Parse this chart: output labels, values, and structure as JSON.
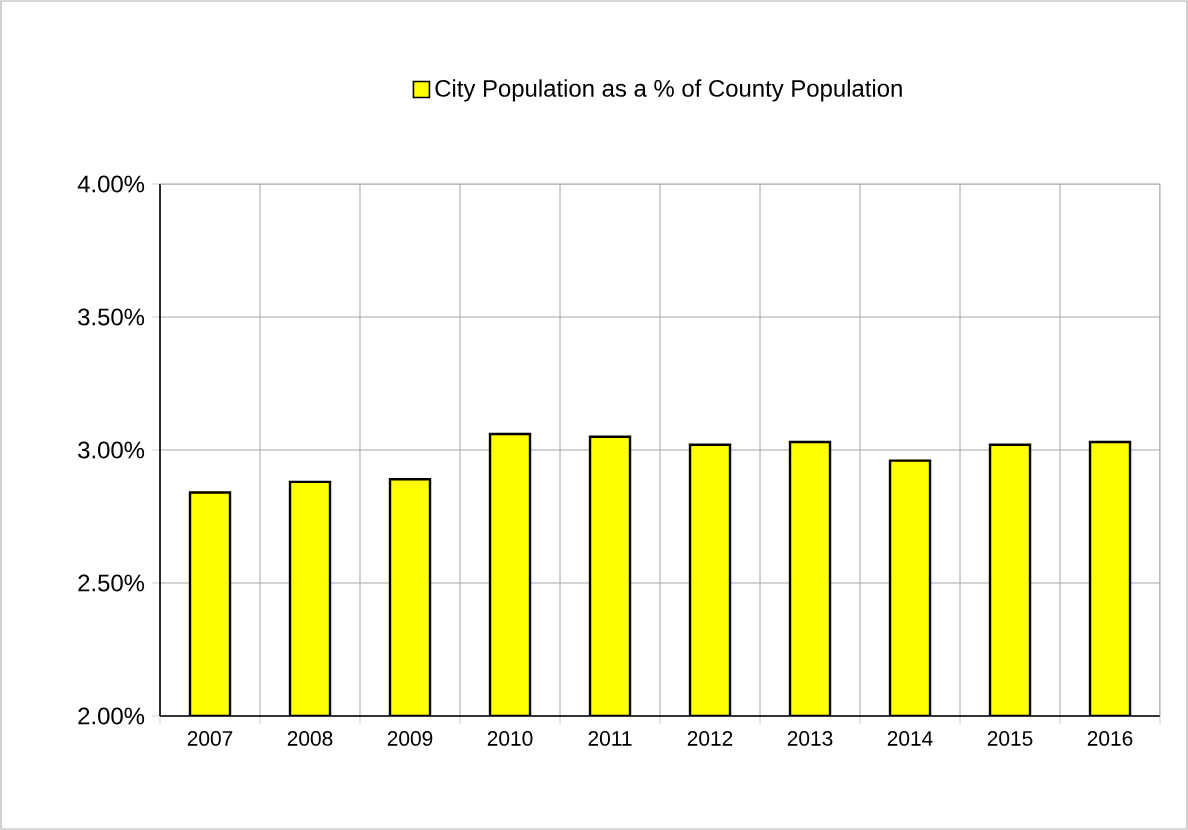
{
  "chart_data": {
    "type": "bar",
    "categories": [
      "2007",
      "2008",
      "2009",
      "2010",
      "2011",
      "2012",
      "2013",
      "2014",
      "2015",
      "2016"
    ],
    "series": [
      {
        "name": "City Population as a % of County Population",
        "color": "#ffff00",
        "values": [
          2.84,
          2.88,
          2.89,
          3.06,
          3.05,
          3.02,
          3.03,
          2.96,
          3.02,
          3.03
        ]
      }
    ],
    "ylim": [
      2,
      4
    ],
    "yticks": [
      {
        "value": 2,
        "label": "2.00%"
      },
      {
        "value": 2.5,
        "label": "2.50%"
      },
      {
        "value": 3,
        "label": "3.00%"
      },
      {
        "value": 3.5,
        "label": "3.50%"
      },
      {
        "value": 4,
        "label": "4.00%"
      }
    ],
    "grid": true,
    "legend": "top"
  }
}
